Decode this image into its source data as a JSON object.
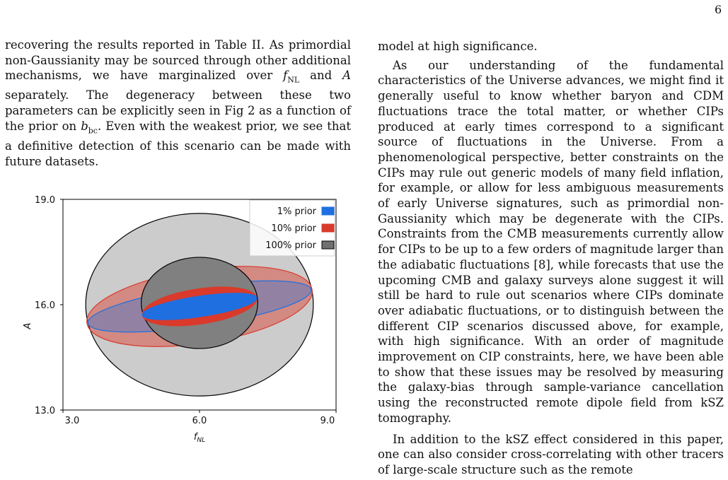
{
  "page_number": "6",
  "left_column": {
    "paragraph_1": {
      "p1": "recovering the results reported in Table II. As primordial non-Gaussianity may be sourced through other additional mechanisms, we have marginalized over ",
      "fnl_sym": "f",
      "fnl_sub": "NL",
      "p2": " and ",
      "a_sym": "A",
      "p3": " separately. The degeneracy between these two parameters can be explicitly seen in Fig 2 as a function of the prior on ",
      "b_sym": "b",
      "b_sub": "bc",
      "p4": ". Even with the weakest prior, we see that a definitive detection of this scenario can be made with future datasets."
    }
  },
  "right_column": {
    "para_0": "model at high significance.",
    "para_1": "As our understanding of the fundamental characteristics of the Universe advances, we might find it generally useful to know whether baryon and CDM fluctuations trace the total matter, or whether CIPs produced at early times correspond to a significant source of fluctuations in the Universe. From a phenomenological perspective, better constraints on the CIPs may rule out generic models of many field inflation, for example, or allow for less ambiguous measurements of early Universe signatures, such as primordial non-Gaussianity which may be degenerate with the CIPs. Constraints from the CMB measurements currently allow for CIPs to be up to a few orders of magnitude larger than the adiabatic fluctuations [8], while forecasts that use the upcoming CMB and galaxy surveys alone suggest it will still be hard to rule out scenarios where CIPs dominate over adiabatic fluctuations, or to distinguish between the different CIP scenarios discussed above, for example, with high significance. With an order of magnitude improvement on CIP constraints, here, we have been able to show that these issues may be resolved by measuring the galaxy-bias through sample-variance cancellation using the reconstructed remote dipole field from kSZ tomography.",
    "para_2": "In addition to the kSZ effect considered in this paper, one can also consider cross-correlating with other tracers of large-scale structure such as the remote"
  },
  "chart_data": {
    "type": "ellipse-contours",
    "xlabel_sym": "f",
    "xlabel_sub": "NL",
    "ylabel": "A",
    "xlim": [
      3.0,
      9.0
    ],
    "ylim": [
      13.0,
      19.0
    ],
    "xticks": [
      "3.0",
      "6.0",
      "9.0"
    ],
    "yticks": [
      "13.0",
      "16.0",
      "19.0"
    ],
    "legend_position": "top-right",
    "legend": [
      {
        "label": "1% prior",
        "color": "#1f6fe0"
      },
      {
        "label": "10% prior",
        "color": "#d93a2b"
      },
      {
        "label": "100% prior",
        "color": "#707070"
      }
    ],
    "ellipses": [
      {
        "name": "100% prior 2σ",
        "cx": 6.0,
        "cy": 16.0,
        "rx": 2.5,
        "ry": 2.6,
        "angle": 0,
        "fill": "#cccccc",
        "stroke": "#000000"
      },
      {
        "name": "10% prior 2σ",
        "cx": 6.0,
        "cy": 15.95,
        "rx": 2.5,
        "ry": 1.05,
        "angle": 8.5,
        "fill": "#d93a2b",
        "fill_opacity": 0.45,
        "stroke": "#d93a2b"
      },
      {
        "name": "1% prior 2σ",
        "cx": 6.0,
        "cy": 15.95,
        "rx": 2.48,
        "ry": 0.56,
        "angle": 8.5,
        "fill": "#1f6fe0",
        "fill_opacity": 0.35,
        "stroke": "#1f6fe0"
      },
      {
        "name": "100% prior 1σ",
        "cx": 6.0,
        "cy": 16.05,
        "rx": 1.28,
        "ry": 1.3,
        "angle": 0,
        "fill": "#808080",
        "stroke": "#000000"
      },
      {
        "name": "10% prior 1σ",
        "cx": 6.0,
        "cy": 15.95,
        "rx": 1.27,
        "ry": 0.5,
        "angle": 8.5,
        "fill": "#d93a2b",
        "stroke": "#d93a2b"
      },
      {
        "name": "1% prior 1σ",
        "cx": 6.0,
        "cy": 15.95,
        "rx": 1.27,
        "ry": 0.29,
        "angle": 8.5,
        "fill": "#1f6fe0",
        "stroke": "#1f6fe0"
      }
    ]
  }
}
